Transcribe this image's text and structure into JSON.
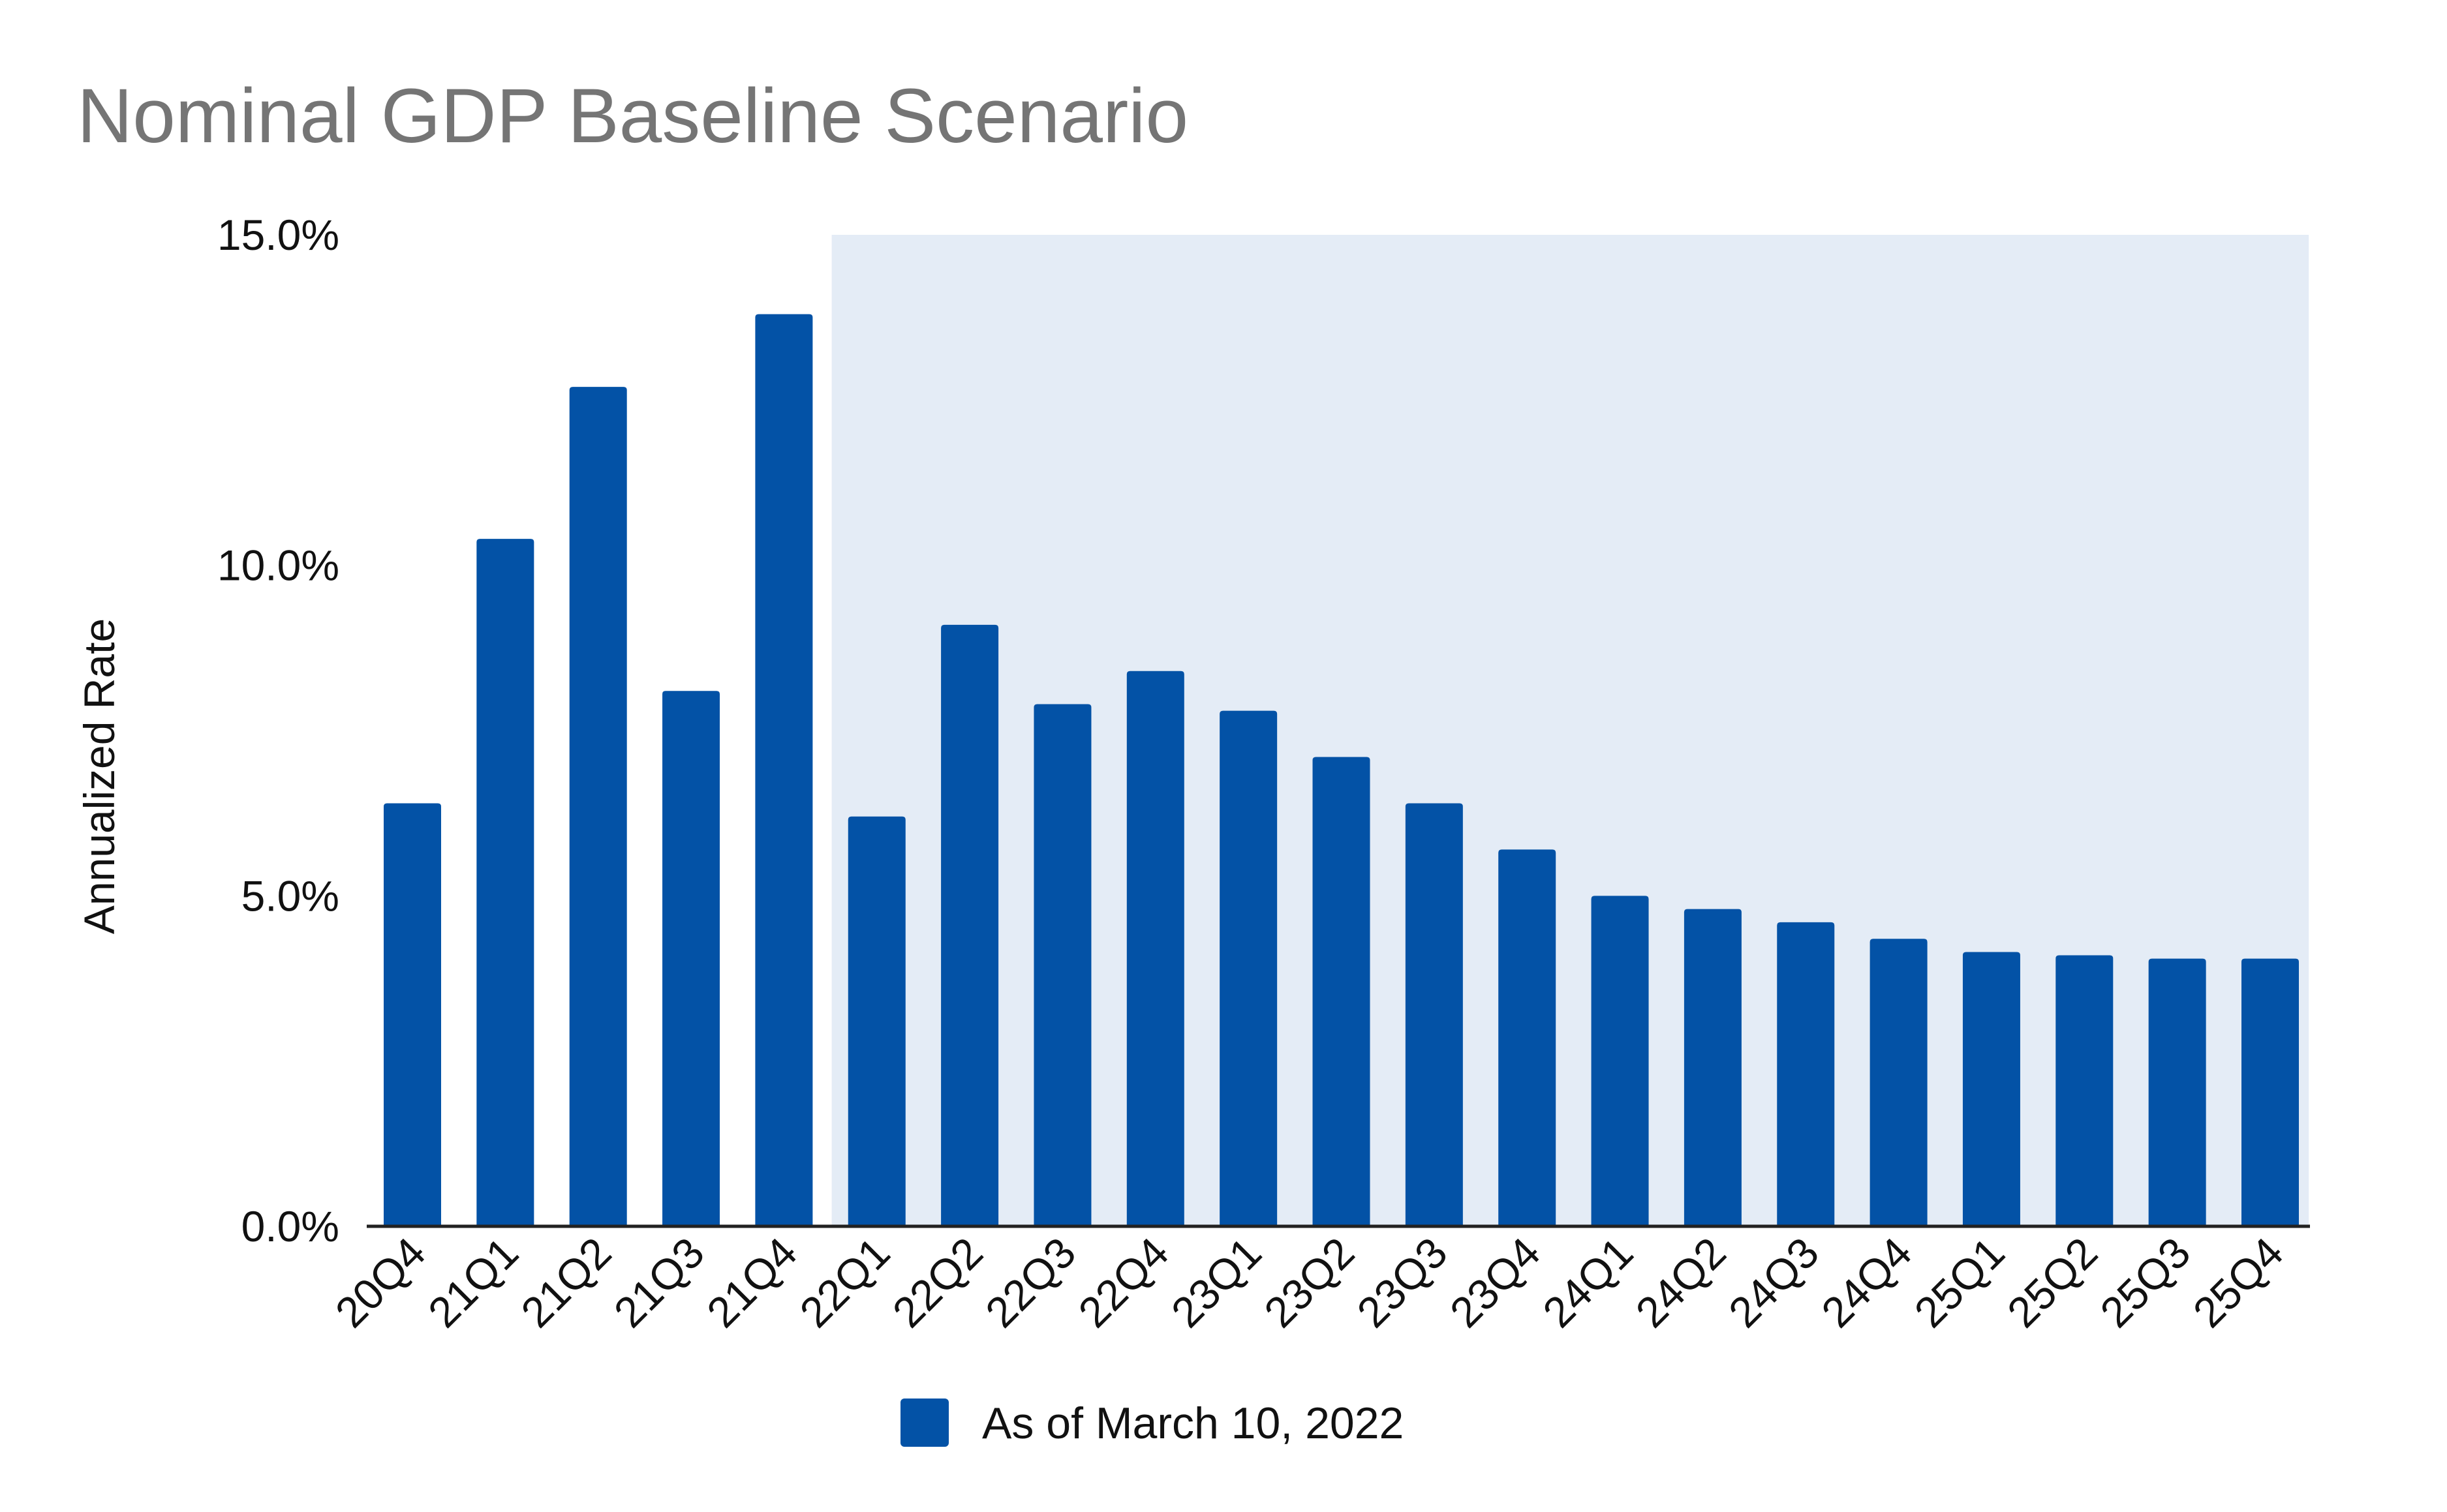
{
  "chart_data": {
    "type": "bar",
    "title": "Nominal GDP Baseline Scenario",
    "xlabel": "",
    "ylabel": "Annualized Rate",
    "ylim": [
      0,
      15
    ],
    "y_ticks": [
      {
        "value": 0,
        "label": "0.0%"
      },
      {
        "value": 5,
        "label": "5.0%"
      },
      {
        "value": 10,
        "label": "10.0%"
      },
      {
        "value": 15,
        "label": "15.0%"
      }
    ],
    "categories": [
      "20Q4",
      "21Q1",
      "21Q2",
      "21Q3",
      "21Q4",
      "22Q1",
      "22Q2",
      "22Q3",
      "22Q4",
      "23Q1",
      "23Q2",
      "23Q3",
      "23Q4",
      "24Q1",
      "24Q2",
      "24Q3",
      "24Q4",
      "25Q1",
      "25Q2",
      "25Q3",
      "25Q4"
    ],
    "series": [
      {
        "name": "As of March 10, 2022",
        "color": "#0352a6",
        "values": [
          6.4,
          10.4,
          12.7,
          8.1,
          13.8,
          6.2,
          9.1,
          7.9,
          8.4,
          7.8,
          7.1,
          6.4,
          5.7,
          5.0,
          4.8,
          4.6,
          4.35,
          4.15,
          4.1,
          4.05,
          4.05
        ]
      }
    ],
    "shaded_region": {
      "from_category": "22Q1",
      "to_category": "25Q4",
      "color": "#e4ecf6"
    },
    "grid": false,
    "legend_position": "bottom-center"
  }
}
